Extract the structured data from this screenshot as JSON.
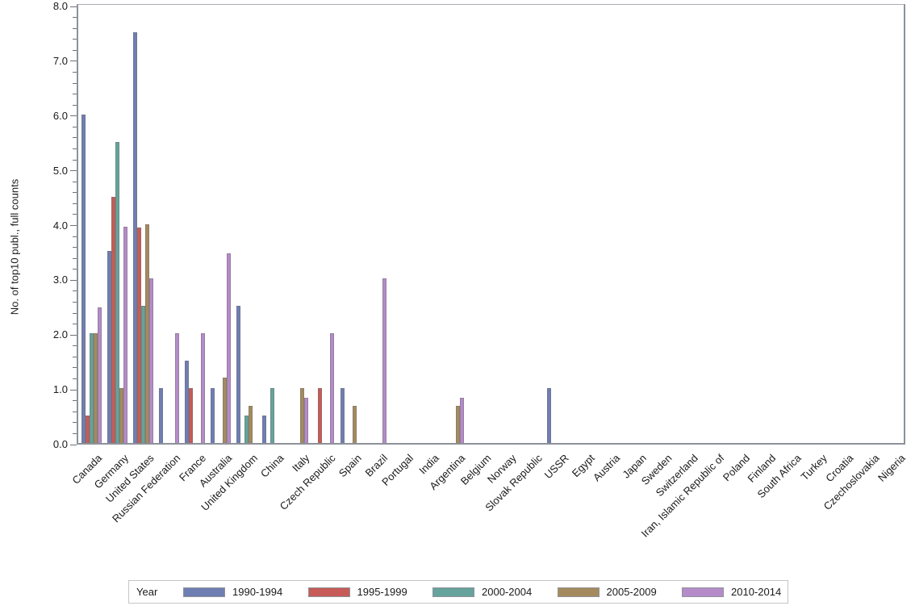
{
  "chart_data": {
    "type": "bar",
    "title": "",
    "xlabel": "",
    "ylabel": "No. of top10 publ., full counts",
    "ylim": [
      0.0,
      8.0
    ],
    "y_major_tick_step": 1.0,
    "y_minor_tick_step": 0.2,
    "y_tick_labels": [
      "0.0",
      "1.0",
      "2.0",
      "3.0",
      "4.0",
      "5.0",
      "6.0",
      "7.0",
      "8.0"
    ],
    "grid": false,
    "legend_title": "Year",
    "legend_position": "bottom",
    "categories": [
      "Canada",
      "Germany",
      "United States",
      "Russian Federation",
      "France",
      "Australia",
      "United Kingdom",
      "China",
      "Italy",
      "Czech Republic",
      "Spain",
      "Brazil",
      "Portugal",
      "India",
      "Argentina",
      "Belgium",
      "Norway",
      "Slovak Republic",
      "USSR",
      "Egypt",
      "Austria",
      "Japan",
      "Sweden",
      "Switzerland",
      "Iran, Islamic Republic of",
      "Poland",
      "Finland",
      "South Africa",
      "Turkey",
      "Croatia",
      "Czechoslovakia",
      "Nigeria"
    ],
    "series": [
      {
        "name": "1990-1994",
        "color": "#6F7EB3",
        "values": [
          6.0,
          3.5,
          7.5,
          1.0,
          1.5,
          1.0,
          2.5,
          0.5,
          0,
          0,
          1.0,
          0,
          0,
          0,
          0,
          0,
          0,
          0,
          1.0,
          0,
          0,
          0,
          0,
          0,
          0,
          0,
          0,
          0,
          0,
          0,
          0,
          0
        ]
      },
      {
        "name": "1995-1999",
        "color": "#C75B57",
        "values": [
          0.5,
          4.5,
          3.93,
          0,
          1.0,
          0,
          0,
          0,
          0,
          1.0,
          0,
          0,
          0,
          0,
          0,
          0,
          0,
          0,
          0,
          0,
          0,
          0,
          0,
          0,
          0,
          0,
          0,
          0,
          0,
          0,
          0,
          0
        ]
      },
      {
        "name": "2000-2004",
        "color": "#65A39C",
        "values": [
          2.0,
          5.5,
          2.5,
          0,
          0,
          0,
          0.5,
          1.0,
          0,
          0,
          0,
          0,
          0,
          0,
          0,
          0,
          0,
          0,
          0,
          0,
          0,
          0,
          0,
          0,
          0,
          0,
          0,
          0,
          0,
          0,
          0,
          0
        ]
      },
      {
        "name": "2005-2009",
        "color": "#A58A5E",
        "values": [
          2.0,
          1.0,
          4.0,
          0,
          0,
          1.2,
          0.68,
          0,
          1.0,
          0,
          0.68,
          0,
          0,
          0,
          0.68,
          0,
          0,
          0,
          0,
          0,
          0,
          0,
          0,
          0,
          0,
          0,
          0,
          0,
          0,
          0,
          0,
          0
        ]
      },
      {
        "name": "2010-2014",
        "color": "#B58BC9",
        "values": [
          2.47,
          3.95,
          3.0,
          2.0,
          2.0,
          3.47,
          0,
          0,
          0.83,
          2.0,
          0,
          3.0,
          0,
          0,
          0.83,
          0,
          0,
          0,
          0,
          0,
          0,
          0,
          0,
          0,
          0,
          0,
          0,
          0,
          0,
          0,
          0,
          0
        ]
      }
    ]
  }
}
